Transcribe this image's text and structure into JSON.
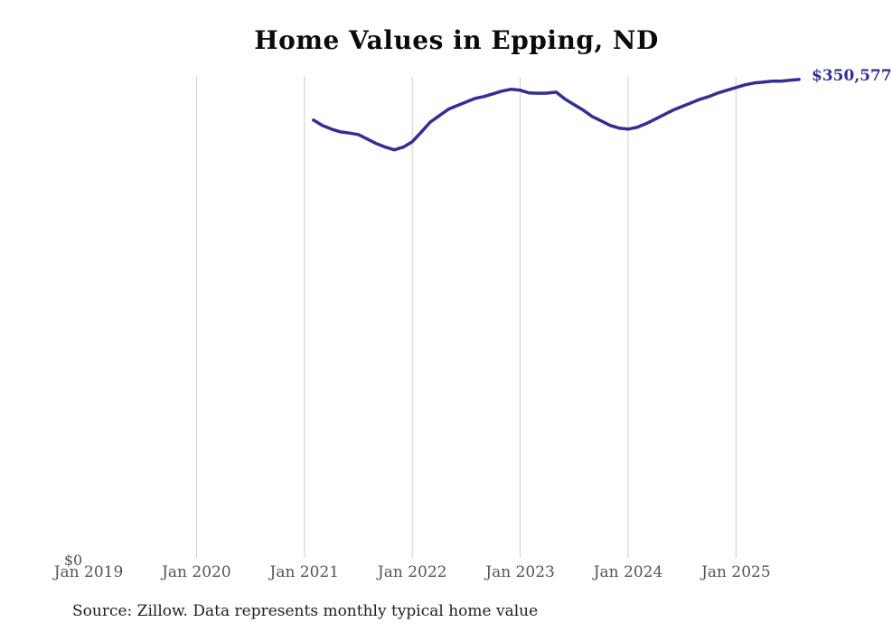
{
  "page": {
    "title": "Home Values in Epping, ND",
    "y_zero_label": "$0",
    "end_value_label": "$350,577",
    "source_note": "Source: Zillow. Data represents monthly typical home value"
  },
  "colors": {
    "line": "#332e96",
    "end_label": "#332e96",
    "gridline": "#cccccc",
    "axis_label": "#555555",
    "title": "#0a0a0a",
    "source": "#1f1f1f",
    "background": "#ffffff"
  },
  "chart_data": {
    "type": "line",
    "title": "Home Values in Epping, ND",
    "series_name": "Typical home value (monthly, USD)",
    "x": [
      "2021-01",
      "2021-02",
      "2021-03",
      "2021-04",
      "2021-05",
      "2021-06",
      "2021-07",
      "2021-08",
      "2021-09",
      "2021-10",
      "2021-11",
      "2021-12",
      "2022-01",
      "2022-02",
      "2022-03",
      "2022-04",
      "2022-05",
      "2022-06",
      "2022-07",
      "2022-08",
      "2022-09",
      "2022-10",
      "2022-11",
      "2022-12",
      "2023-01",
      "2023-02",
      "2023-03",
      "2023-04",
      "2023-05",
      "2023-06",
      "2023-07",
      "2023-08",
      "2023-09",
      "2023-10",
      "2023-11",
      "2023-12",
      "2024-01",
      "2024-02",
      "2024-03",
      "2024-04",
      "2024-05",
      "2024-06",
      "2024-07",
      "2024-08",
      "2024-09",
      "2024-10",
      "2024-11",
      "2024-12",
      "2025-01",
      "2025-02",
      "2025-03",
      "2025-04",
      "2025-05",
      "2025-06",
      "2025-07"
    ],
    "values": [
      320800,
      316900,
      314200,
      312200,
      311300,
      310200,
      306900,
      303600,
      301000,
      299000,
      301000,
      305000,
      312100,
      319400,
      324100,
      328700,
      331400,
      334100,
      336700,
      338100,
      340100,
      342100,
      343400,
      342700,
      340700,
      340500,
      340600,
      341300,
      336100,
      332100,
      328100,
      323500,
      320200,
      316900,
      314900,
      314200,
      315500,
      318200,
      321500,
      324800,
      328100,
      330800,
      333400,
      336100,
      338100,
      340700,
      342700,
      344700,
      346700,
      348000,
      348600,
      349300,
      349300,
      350000,
      350577
    ],
    "last_value": 350577,
    "end_annotation": "$350,577",
    "x_tick_labels": [
      "Jan 2019",
      "Jan 2020",
      "Jan 2021",
      "Jan 2022",
      "Jan 2023",
      "Jan 2024",
      "Jan 2025"
    ],
    "x_ticks_with_gridline": [
      "Jan 2020",
      "Jan 2021",
      "Jan 2022",
      "Jan 2023",
      "Jan 2024",
      "Jan 2025"
    ],
    "y_tick_labels": [
      "$0"
    ],
    "ylim": [
      0,
      352500
    ],
    "xlabel": "",
    "ylabel": "",
    "grid": "vertical gridlines only; none at Jan 2019",
    "legend_position": "none"
  }
}
